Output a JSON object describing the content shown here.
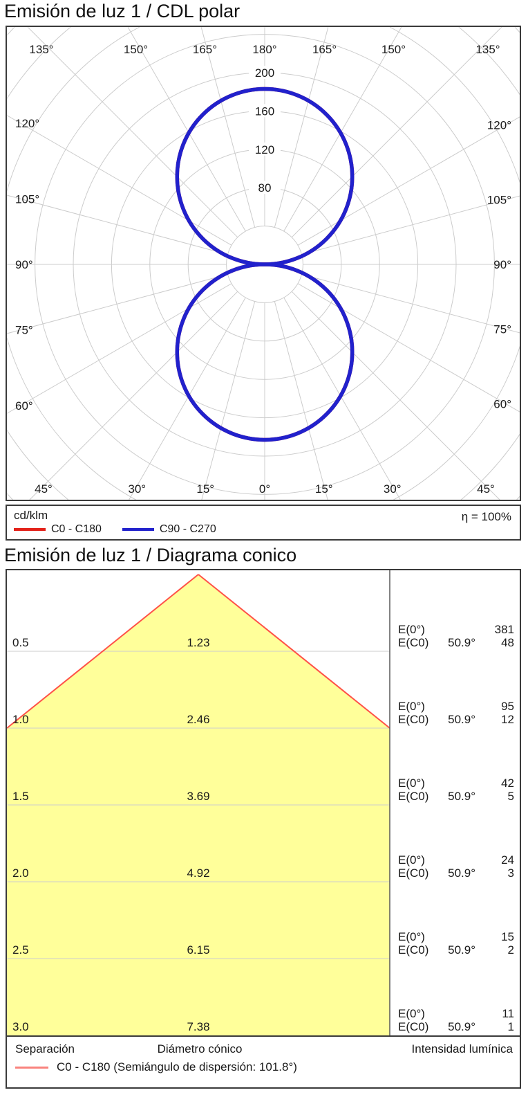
{
  "chart_data": [
    {
      "type": "polar",
      "title": "Emisión de luz 1 / CDL polar",
      "unit": "cd/klm",
      "efficiency": "η = 100%",
      "efficiency_pct": 100,
      "angle_labels_deg": [
        0,
        15,
        30,
        45,
        60,
        75,
        90,
        105,
        120,
        135,
        150,
        165,
        180
      ],
      "angle_step_deg": 15,
      "ring_step_cd": 40,
      "ring_label_values": [
        80,
        120,
        160,
        200
      ],
      "grid_color": "#cccccc",
      "series": [
        {
          "name": "C0 - C180",
          "color": "#e32119",
          "peak_cd_klm": 183,
          "gamma_deg": [
            0,
            15,
            30,
            45,
            60,
            75,
            90
          ],
          "intensity_cd_klm": [
            183,
            177,
            158,
            129,
            92,
            47,
            0
          ],
          "note": "two symmetric circular lobes through origin (down 0° and up 180°), I(γ)=183·|cos γ|; hidden beneath C90 - C270"
        },
        {
          "name": "C90 - C270",
          "color": "#2121cc",
          "peak_cd_klm": 183,
          "gamma_deg": [
            0,
            15,
            30,
            45,
            60,
            75,
            90
          ],
          "intensity_cd_klm": [
            183,
            177,
            158,
            129,
            92,
            47,
            0
          ],
          "note": "identical figure-eight lobes, drawn on top"
        }
      ]
    },
    {
      "type": "cone",
      "title": "Emisión de luz 1 / Diagrama conico",
      "semiangle_deg": 50.9,
      "beam_color": "#ffff9a",
      "edge_color": "#ff5148",
      "grid_color": "#cccccc",
      "rows": [
        {
          "separation": "0.5",
          "diameter": "1.23",
          "e0_label": "E(0°)",
          "e0": "381",
          "ec0_label": "E(C0)",
          "ec0_angle": "50.9°",
          "ec0": "48"
        },
        {
          "separation": "1.0",
          "diameter": "2.46",
          "e0_label": "E(0°)",
          "e0": "95",
          "ec0_label": "E(C0)",
          "ec0_angle": "50.9°",
          "ec0": "12"
        },
        {
          "separation": "1.5",
          "diameter": "3.69",
          "e0_label": "E(0°)",
          "e0": "42",
          "ec0_label": "E(C0)",
          "ec0_angle": "50.9°",
          "ec0": "5"
        },
        {
          "separation": "2.0",
          "diameter": "4.92",
          "e0_label": "E(0°)",
          "e0": "24",
          "ec0_label": "E(C0)",
          "ec0_angle": "50.9°",
          "ec0": "3"
        },
        {
          "separation": "2.5",
          "diameter": "6.15",
          "e0_label": "E(0°)",
          "e0": "15",
          "ec0_label": "E(C0)",
          "ec0_angle": "50.9°",
          "ec0": "2"
        },
        {
          "separation": "3.0",
          "diameter": "7.38",
          "e0_label": "E(0°)",
          "e0": "11",
          "ec0_label": "E(C0)",
          "ec0_angle": "50.9°",
          "ec0": "1"
        }
      ],
      "footer": {
        "separation": "Separación",
        "diameter": "Diámetro cónico",
        "intensity": "Intensidad lumínica"
      },
      "legend_label": "C0 - C180 (Semiángulo de dispersión: 101.8°)",
      "legend_color": "#f9837d"
    }
  ]
}
